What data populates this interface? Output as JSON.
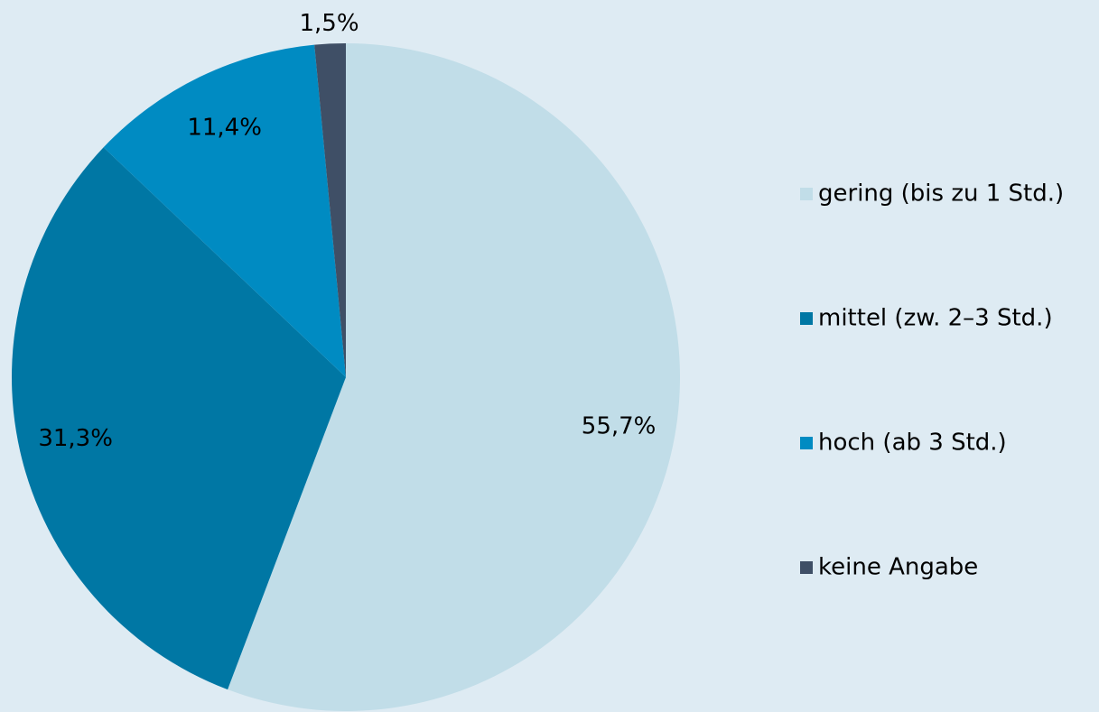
{
  "chart_data": {
    "type": "pie",
    "categories": [
      "gering (bis zu 1 Std.)",
      "mittel (zw. 2–3 Std.)",
      "hoch (ab 3 Std.)",
      "keine Angabe"
    ],
    "values": [
      55.7,
      31.3,
      11.4,
      1.5
    ],
    "value_labels": [
      "55,7%",
      "31,3%",
      "11,4%",
      "1,5%"
    ],
    "colors": [
      "#c1dde8",
      "#0077a4",
      "#008bc2",
      "#3f4f66"
    ],
    "legend": "right"
  }
}
